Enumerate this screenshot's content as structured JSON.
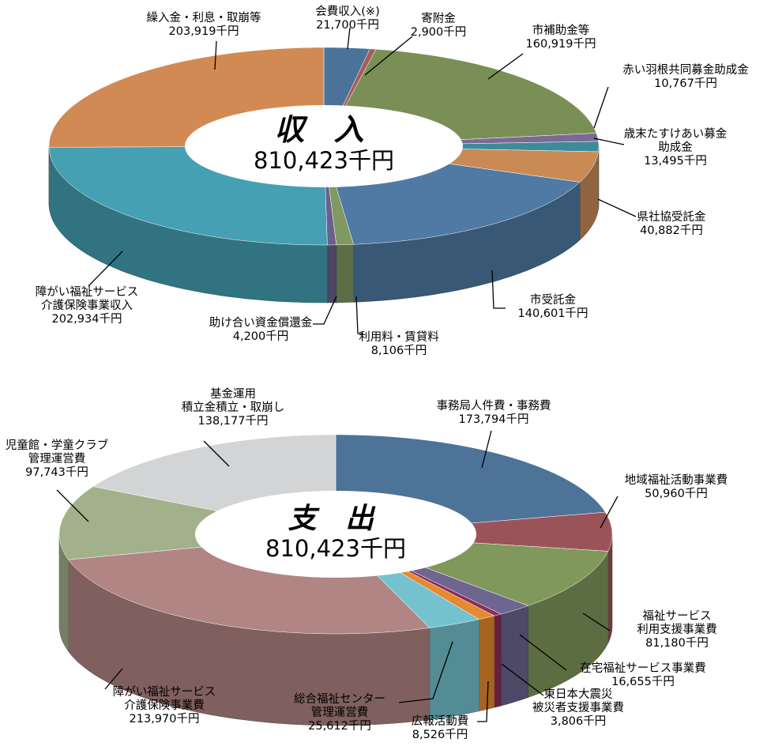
{
  "chart_data": [
    {
      "type": "pie",
      "title": "収 入",
      "total": "810,423千円",
      "unit": "千円",
      "slices": [
        {
          "label": "会費収入(※)",
          "value": 21700,
          "value_text": "21,700千円",
          "color": "#4b7399"
        },
        {
          "label": "寄附金",
          "value": 2900,
          "value_text": "2,900千円",
          "color": "#a65b5b"
        },
        {
          "label": "市補助金等",
          "value": 160919,
          "value_text": "160,919千円",
          "color": "#7a8f55"
        },
        {
          "label": "赤い羽根共同募金助成金",
          "value": 10767,
          "value_text": "10,767千円",
          "color": "#7b6a94"
        },
        {
          "label": "歳末たすけあい募金 助成金",
          "value": 13495,
          "value_text": "13,495千円",
          "color": "#3c8b99"
        },
        {
          "label": "県社協受託金",
          "value": 40882,
          "value_text": "40,882千円",
          "color": "#c98a56"
        },
        {
          "label": "市受託金",
          "value": 140601,
          "value_text": "140,601千円",
          "color": "#4e7aa3"
        },
        {
          "label": "利用料・賃貸料",
          "value": 8106,
          "value_text": "8,106千円",
          "color": "#7f9960"
        },
        {
          "label": "助け合い資金償還金",
          "value": 4200,
          "value_text": "4,200千円",
          "color": "#6d5f8c"
        },
        {
          "label": "障がい福祉サービス 介護保険事業収入",
          "value": 202934,
          "value_text": "202,934千円",
          "color": "#45a0b3"
        },
        {
          "label": "繰入金・利息・取崩等",
          "value": 203919,
          "value_text": "203,919千円",
          "color": "#d18a53"
        }
      ]
    },
    {
      "type": "pie",
      "title": "支 出",
      "total": "810,423千円",
      "unit": "千円",
      "slices": [
        {
          "label": "事務局人件費・事務費",
          "value": 173794,
          "value_text": "173,794千円",
          "color": "#4d7398"
        },
        {
          "label": "地域福祉活動事業費",
          "value": 50960,
          "value_text": "50,960千円",
          "color": "#9a5459"
        },
        {
          "label": "福祉サービス 利用支援事業費",
          "value": 81180,
          "value_text": "81,180千円",
          "color": "#80985b"
        },
        {
          "label": "在宅福祉サービス事業費",
          "value": 16655,
          "value_text": "16,655千円",
          "color": "#6e6690"
        },
        {
          "label": "東日本大震災 被災者支援事業費",
          "value": 3806,
          "value_text": "3,806千円",
          "color": "#8a2f59"
        },
        {
          "label": "広報活動費",
          "value": 8526,
          "value_text": "8,526千円",
          "color": "#e6892f"
        },
        {
          "label": "総合福祉センター 管理運営費",
          "value": 25612,
          "value_text": "25,612千円",
          "color": "#74c2cf"
        },
        {
          "label": "障がい福祉サービス 介護保険事業費",
          "value": 213970,
          "value_text": "213,970千円",
          "color": "#b08583"
        },
        {
          "label": "児童館・学童クラブ 管理運営費",
          "value": 97743,
          "value_text": "97,743千円",
          "color": "#a3b08c"
        },
        {
          "label": "基金運用 積立金積立・取崩し",
          "value": 138177,
          "value_text": "138,177千円",
          "color": "#d3d4d6"
        }
      ]
    }
  ]
}
